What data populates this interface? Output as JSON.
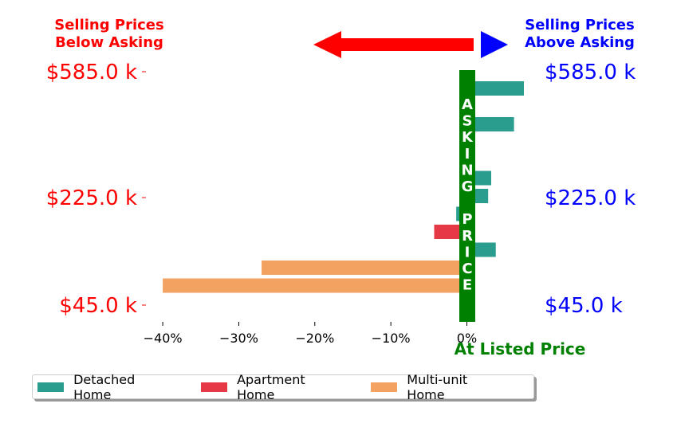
{
  "header": {
    "left_line1": "Selling Prices",
    "left_line2": "Below Asking",
    "right_line1": "Selling Prices",
    "right_line2": "Above Asking"
  },
  "colors": {
    "below": "#ff0000",
    "above": "#0000ff",
    "asking_bar": "#008000",
    "detached": "#2a9d8f",
    "apartment": "#e63946",
    "multi": "#f4a261"
  },
  "asking_label": "ASKING PRICE",
  "at_listed_label": "At Listed Price",
  "chart_data": {
    "type": "bar",
    "orientation": "horizontal",
    "xlabel": "",
    "ylabel": "",
    "xlim": [
      -0.42,
      0.03
    ],
    "x_ticks": [
      -0.4,
      -0.3,
      -0.2,
      -0.1,
      0.0
    ],
    "x_tick_labels": [
      "−40%",
      "−30%",
      "−20%",
      "−10%",
      "0%"
    ],
    "y_tick_labels_left": [
      "$585.0 k",
      "$225.0 k",
      "$45.0 k"
    ],
    "y_tick_labels_right": [
      "$585.0 k",
      "$225.0 k",
      "$45.0 k"
    ],
    "bars": [
      {
        "series": "Detached Home",
        "value": 0.075
      },
      {
        "series": "Detached Home",
        "value": -0.008
      },
      {
        "series": "Detached Home",
        "value": 0.062
      },
      {
        "series": "Detached Home",
        "value": -0.004
      },
      {
        "series": "Detached Home",
        "value": -0.008
      },
      {
        "series": "Detached Home",
        "value": 0.032
      },
      {
        "series": "Detached Home",
        "value": 0.028
      },
      {
        "series": "Detached Home",
        "value": -0.014
      },
      {
        "series": "Apartment Home",
        "value": -0.043
      },
      {
        "series": "Detached Home",
        "value": 0.038
      },
      {
        "series": "Multi-unit Home",
        "value": -0.27
      },
      {
        "series": "Multi-unit Home",
        "value": -0.4
      }
    ],
    "legend": {
      "placement": "bottom-left",
      "entries": [
        "Detached Home",
        "Apartment Home",
        "Multi-unit Home"
      ]
    },
    "grid": false
  }
}
